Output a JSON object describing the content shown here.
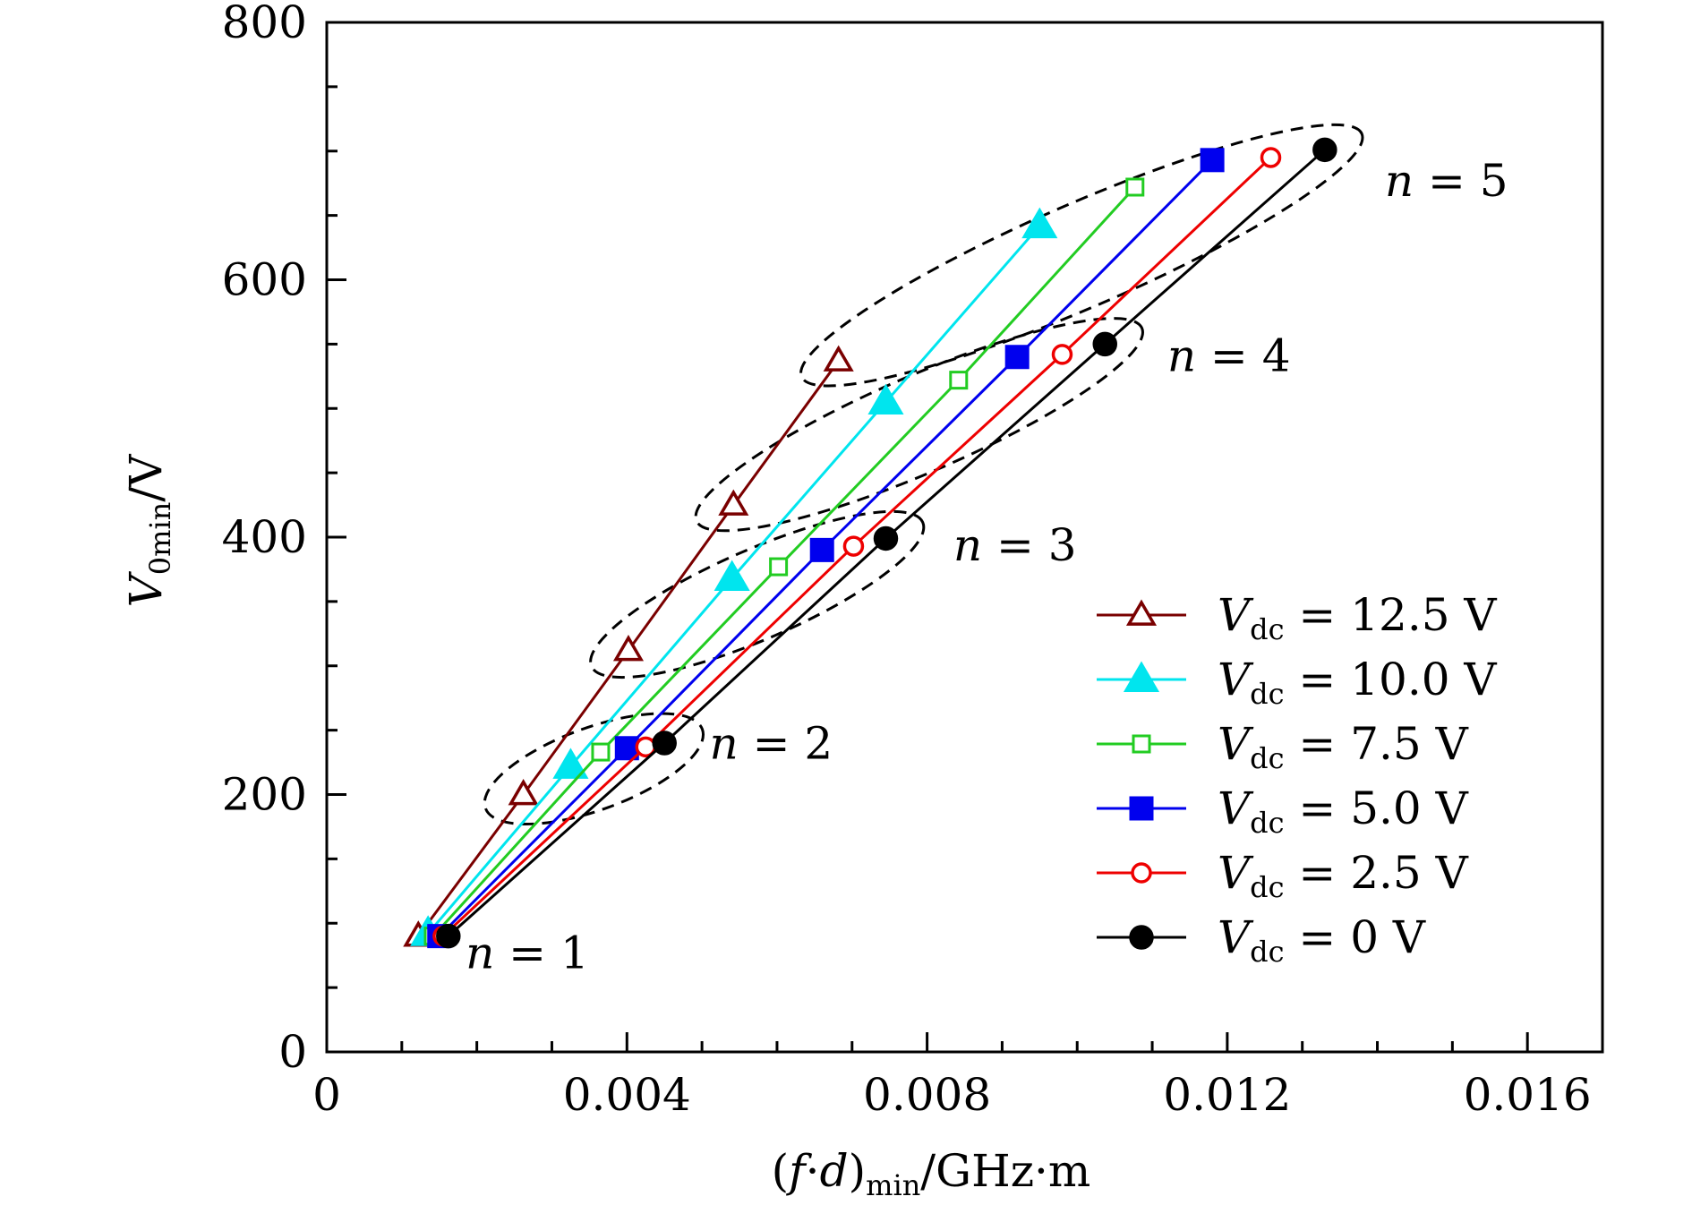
{
  "chart_data": {
    "type": "line",
    "title": "",
    "xlabel": "(f·d)min/GHz·m",
    "ylabel": "V0min/V",
    "xlim": [
      0,
      0.017
    ],
    "ylim": [
      0,
      800
    ],
    "xticks": [
      0,
      0.004,
      0.008,
      0.012,
      0.016
    ],
    "xtick_labels": [
      "0",
      "0.004",
      "0.008",
      "0.012",
      "0.016"
    ],
    "yticks": [
      0,
      200,
      400,
      600,
      800
    ],
    "ytick_labels": [
      "0",
      "200",
      "400",
      "600",
      "800"
    ],
    "legend_position": "bottom-right",
    "series": [
      {
        "name": "Vdc = 12.5 V",
        "color": "#7a0000",
        "marker": "triangle-open",
        "x": [
          0.00122,
          0.00262,
          0.00402,
          0.00542,
          0.00682
        ],
        "y": [
          90,
          200,
          312,
          425,
          537
        ]
      },
      {
        "name": "Vdc = 10.0 V",
        "color": "#00e5ee",
        "marker": "triangle-filled",
        "x": [
          0.00135,
          0.00325,
          0.0054,
          0.00745,
          0.0095
        ],
        "y": [
          92,
          222,
          368,
          505,
          642
        ]
      },
      {
        "name": "Vdc = 7.5 V",
        "color": "#22cc22",
        "marker": "square-open",
        "x": [
          0.00142,
          0.00365,
          0.00602,
          0.00842,
          0.01077
        ],
        "y": [
          90,
          233,
          377,
          522,
          672
        ]
      },
      {
        "name": "Vdc = 5.0 V",
        "color": "#0000ee",
        "marker": "square-filled",
        "x": [
          0.0015,
          0.004,
          0.0066,
          0.0092,
          0.0118
        ],
        "y": [
          90,
          236,
          390,
          540,
          693
        ]
      },
      {
        "name": "Vdc = 2.5 V",
        "color": "#ee0000",
        "marker": "circle-open",
        "x": [
          0.00155,
          0.00425,
          0.00702,
          0.0098,
          0.01258
        ],
        "y": [
          90,
          237,
          393,
          542,
          695
        ]
      },
      {
        "name": "Vdc = 0 V",
        "color": "#000000",
        "marker": "circle-filled",
        "x": [
          0.00162,
          0.0045,
          0.00745,
          0.01037,
          0.0133
        ],
        "y": [
          90,
          240,
          399,
          550,
          701
        ]
      }
    ],
    "legend": {
      "entries": [
        {
          "prefix": "V",
          "sub": "dc",
          "value": " = 12.5 V"
        },
        {
          "prefix": "V",
          "sub": "dc",
          "value": " = 10.0 V"
        },
        {
          "prefix": "V",
          "sub": "dc",
          "value": " = 7.5 V"
        },
        {
          "prefix": "V",
          "sub": "dc",
          "value": " = 5.0 V"
        },
        {
          "prefix": "V",
          "sub": "dc",
          "value": " = 2.5 V"
        },
        {
          "prefix": "V",
          "sub": "dc",
          "value": " = 0 V"
        }
      ]
    },
    "annotations": [
      {
        "text": "n = 1",
        "var": "n",
        "rest": " = 1",
        "x": 0.00185,
        "y": 65
      },
      {
        "text": "n = 2",
        "var": "n",
        "rest": " = 2",
        "x": 0.0051,
        "y": 228
      },
      {
        "text": "n = 3",
        "var": "n",
        "rest": " = 3",
        "x": 0.00835,
        "y": 382
      },
      {
        "text": "n = 4",
        "var": "n",
        "rest": " = 4",
        "x": 0.0112,
        "y": 529
      },
      {
        "text": "n = 5",
        "var": "n",
        "rest": " = 5",
        "x": 0.0141,
        "y": 665
      }
    ],
    "axis_text": {
      "x_paren_open": "(",
      "x_f": "f",
      "x_dot": "·",
      "x_d": "d",
      "x_paren_close": ")",
      "x_sub": "min",
      "x_units": "/GHz·m",
      "y_main": "V",
      "y_sub": "0min",
      "y_units": "/V"
    }
  }
}
